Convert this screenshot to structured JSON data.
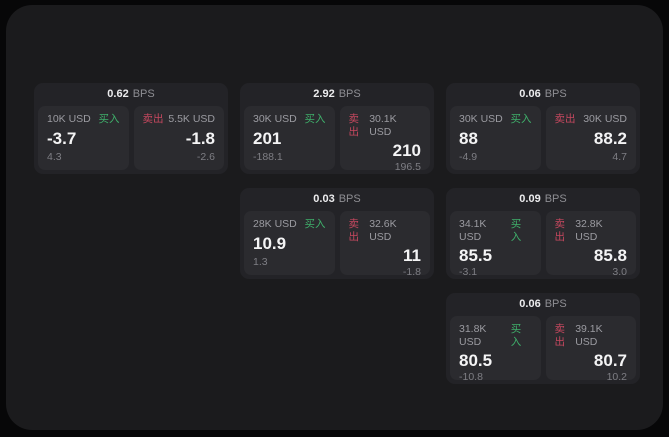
{
  "colors": {
    "page_background": "#070708",
    "surface_background": "#1b1b1d",
    "card_background": "#232327",
    "panel_background": "#2b2b2f",
    "buy": "#3fb06b",
    "sell": "#c6485f",
    "primary_text": "#f4f4f5",
    "muted_text": "#8e8e93"
  },
  "labels": {
    "buy": "买入",
    "sell": "卖出",
    "bps_unit": "BPS"
  },
  "cards": [
    {
      "row": 1,
      "col": 1,
      "bps": "0.62",
      "buy": {
        "amount": "10K USD",
        "main": "-3.7",
        "sub": "4.3"
      },
      "sell": {
        "amount": "5.5K USD",
        "main": "-1.8",
        "sub": "-2.6"
      }
    },
    {
      "row": 1,
      "col": 2,
      "bps": "2.92",
      "buy": {
        "amount": "30K USD",
        "main": "201",
        "sub": "-188.1"
      },
      "sell": {
        "amount": "30.1K USD",
        "main": "210",
        "sub": "196.5"
      }
    },
    {
      "row": 1,
      "col": 3,
      "bps": "0.06",
      "buy": {
        "amount": "30K USD",
        "main": "88",
        "sub": "-4.9"
      },
      "sell": {
        "amount": "30K USD",
        "main": "88.2",
        "sub": "4.7"
      }
    },
    {
      "row": 2,
      "col": 2,
      "bps": "0.03",
      "buy": {
        "amount": "28K USD",
        "main": "10.9",
        "sub": "1.3"
      },
      "sell": {
        "amount": "32.6K USD",
        "main": "11",
        "sub": "-1.8"
      }
    },
    {
      "row": 2,
      "col": 3,
      "bps": "0.09",
      "buy": {
        "amount": "34.1K USD",
        "main": "85.5",
        "sub": "-3.1"
      },
      "sell": {
        "amount": "32.8K USD",
        "main": "85.8",
        "sub": "3.0"
      }
    },
    {
      "row": 3,
      "col": 3,
      "bps": "0.06",
      "buy": {
        "amount": "31.8K USD",
        "main": "80.5",
        "sub": "-10.8"
      },
      "sell": {
        "amount": "39.1K USD",
        "main": "80.7",
        "sub": "10.2"
      }
    }
  ]
}
